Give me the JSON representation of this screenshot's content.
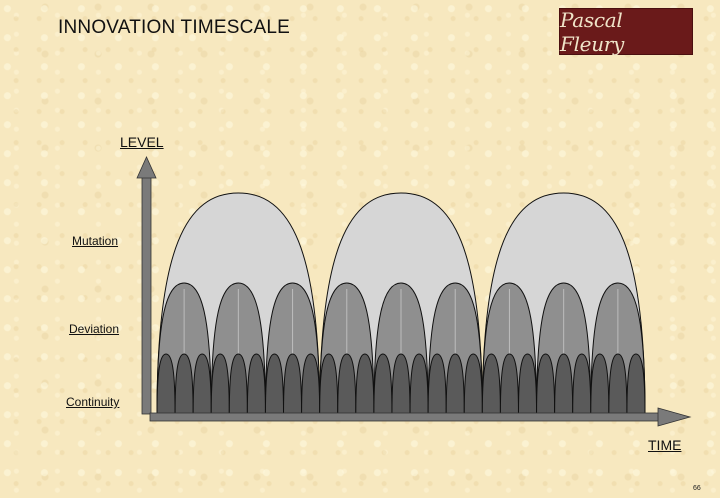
{
  "slide": {
    "title": "INNOVATION TIMESCALE",
    "logo_text": "Pascal Fleury",
    "page_number": "66"
  },
  "axes": {
    "y_label": "LEVEL",
    "x_label": "TIME"
  },
  "levels": [
    {
      "label": "Mutation",
      "arches": 3,
      "fill": "#d6d6d6"
    },
    {
      "label": "Deviation",
      "arches": 9,
      "fill": "#8f8f8f"
    },
    {
      "label": "Continuity",
      "arches": 27,
      "fill": "#5a5a5a"
    }
  ],
  "colors": {
    "axis": "#7a7a7a",
    "background": "#f7e8bf",
    "logo_bg": "#6a1a1a"
  }
}
